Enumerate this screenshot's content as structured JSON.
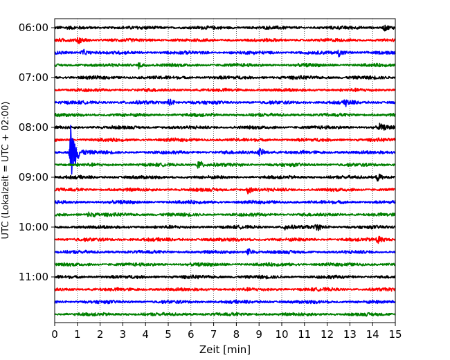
{
  "chart_data": {
    "type": "line",
    "title": "",
    "xlabel": "Zeit  [min]",
    "ylabel": "UTC (Lokalzeit = UTC + 02:00)",
    "xlim": [
      0,
      15
    ],
    "x_ticks": [
      "0",
      "1",
      "2",
      "3",
      "4",
      "5",
      "6",
      "7",
      "8",
      "9",
      "10",
      "11",
      "12",
      "13",
      "14",
      "15"
    ],
    "y_ticks": [
      "06:00",
      "07:00",
      "08:00",
      "09:00",
      "10:00",
      "11:00"
    ],
    "grid": "vertical dotted lines at each minute",
    "row_interval_minutes": 15,
    "colors": [
      "#000000",
      "#ff0000",
      "#0000ff",
      "#008000"
    ],
    "rows": [
      {
        "start": "06:00",
        "color": "#000000"
      },
      {
        "start": "06:15",
        "color": "#ff0000"
      },
      {
        "start": "06:30",
        "color": "#0000ff"
      },
      {
        "start": "06:45",
        "color": "#008000"
      },
      {
        "start": "07:00",
        "color": "#000000"
      },
      {
        "start": "07:15",
        "color": "#ff0000"
      },
      {
        "start": "07:30",
        "color": "#0000ff"
      },
      {
        "start": "07:45",
        "color": "#008000"
      },
      {
        "start": "08:00",
        "color": "#000000"
      },
      {
        "start": "08:15",
        "color": "#ff0000"
      },
      {
        "start": "08:30",
        "color": "#0000ff"
      },
      {
        "start": "08:45",
        "color": "#008000"
      },
      {
        "start": "09:00",
        "color": "#000000"
      },
      {
        "start": "09:15",
        "color": "#ff0000"
      },
      {
        "start": "09:30",
        "color": "#0000ff"
      },
      {
        "start": "09:45",
        "color": "#008000"
      },
      {
        "start": "10:00",
        "color": "#000000"
      },
      {
        "start": "10:15",
        "color": "#ff0000"
      },
      {
        "start": "10:30",
        "color": "#0000ff"
      },
      {
        "start": "10:45",
        "color": "#008000"
      },
      {
        "start": "11:00",
        "color": "#000000"
      },
      {
        "start": "11:15",
        "color": "#ff0000"
      },
      {
        "start": "11:30",
        "color": "#0000ff"
      },
      {
        "start": "11:45",
        "color": "#008000"
      }
    ],
    "events": [
      {
        "row": "06:00",
        "minute": 14.5,
        "amplitude": 0.3
      },
      {
        "row": "06:15",
        "minute": 1.0,
        "amplitude": 0.35
      },
      {
        "row": "06:30",
        "minute": 1.2,
        "amplitude": 0.3
      },
      {
        "row": "06:30",
        "minute": 12.5,
        "amplitude": 0.35
      },
      {
        "row": "06:45",
        "minute": 3.7,
        "amplitude": 0.3
      },
      {
        "row": "07:30",
        "minute": 5.0,
        "amplitude": 0.4
      },
      {
        "row": "07:30",
        "minute": 12.8,
        "amplitude": 0.3
      },
      {
        "row": "08:00",
        "minute": 14.3,
        "amplitude": 0.3
      },
      {
        "row": "08:30",
        "minute": 0.7,
        "amplitude": 3.2
      },
      {
        "row": "08:30",
        "minute": 9.0,
        "amplitude": 0.4
      },
      {
        "row": "08:45",
        "minute": 6.3,
        "amplitude": 0.45
      },
      {
        "row": "09:00",
        "minute": 14.2,
        "amplitude": 0.35
      },
      {
        "row": "09:15",
        "minute": 8.5,
        "amplitude": 0.35
      },
      {
        "row": "09:45",
        "minute": 1.5,
        "amplitude": 0.3
      },
      {
        "row": "10:00",
        "minute": 10.1,
        "amplitude": 0.3
      },
      {
        "row": "10:00",
        "minute": 11.5,
        "amplitude": 0.3
      },
      {
        "row": "10:15",
        "minute": 14.2,
        "amplitude": 0.45
      },
      {
        "row": "10:30",
        "minute": 8.5,
        "amplitude": 0.35
      }
    ]
  }
}
